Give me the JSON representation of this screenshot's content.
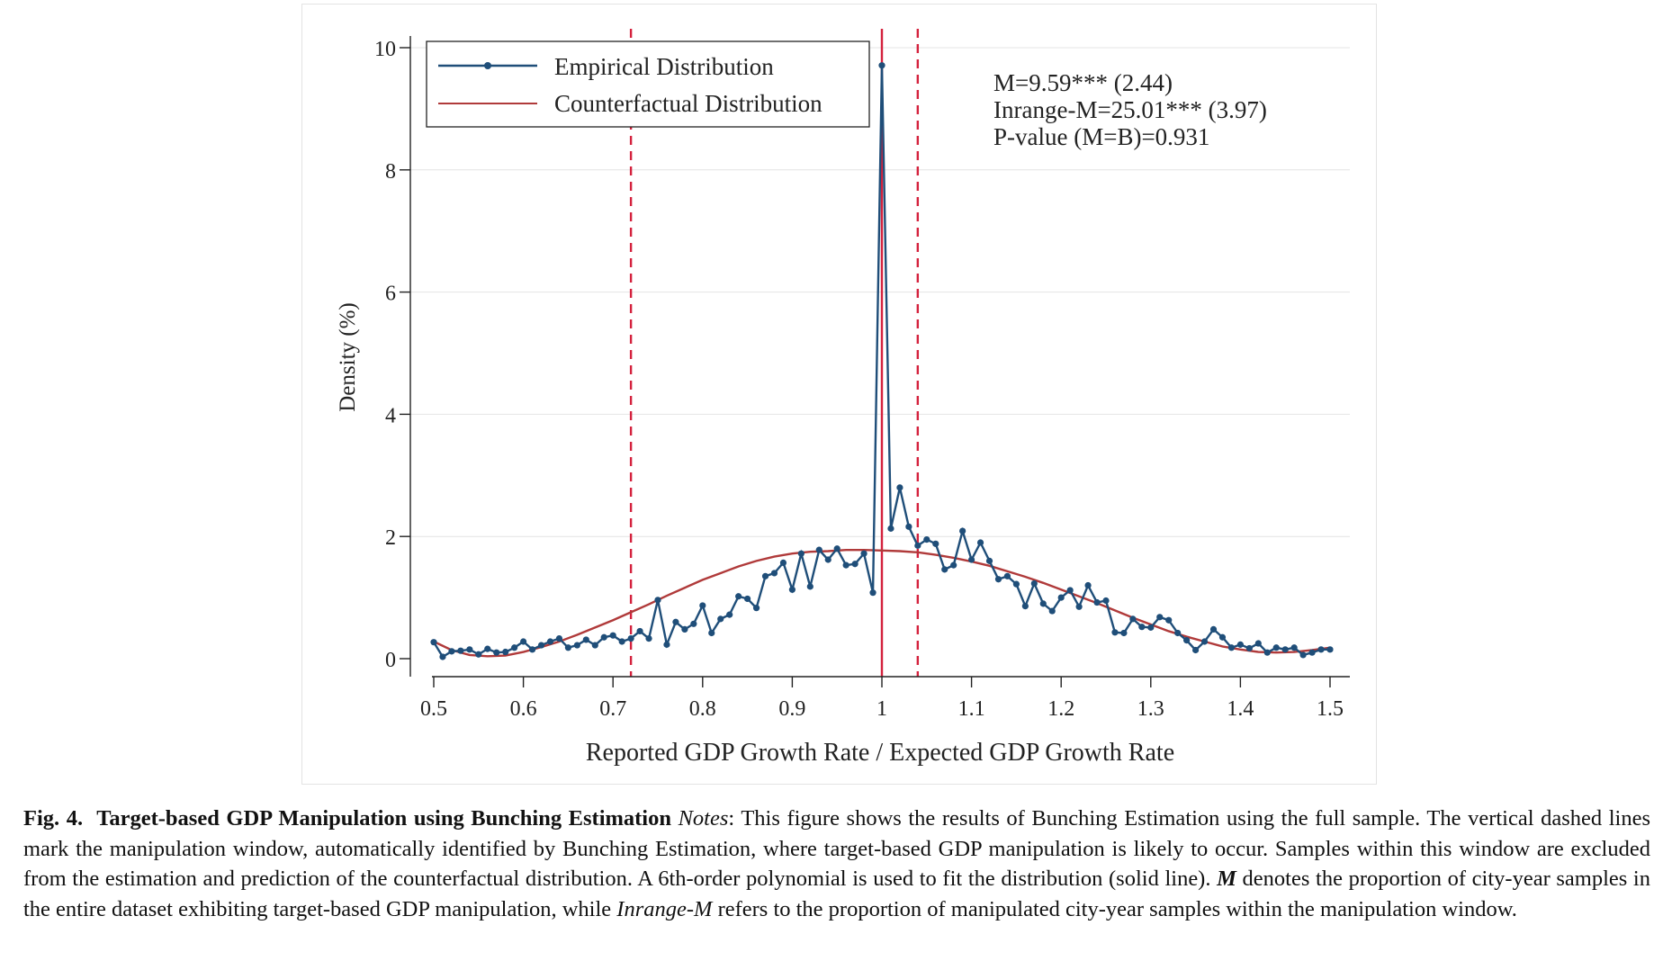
{
  "chart_data": {
    "type": "line",
    "xlabel": "Reported GDP Growth Rate / Expected GDP Growth Rate",
    "ylabel": "Density (%)",
    "xlim": [
      0.5,
      1.5
    ],
    "ylim": [
      0,
      10
    ],
    "x_ticks": [
      "0.5",
      "0.6",
      "0.7",
      "0.8",
      "0.9",
      "1",
      "1.1",
      "1.2",
      "1.3",
      "1.4",
      "1.5"
    ],
    "y_ticks": [
      "0",
      "2",
      "4",
      "6",
      "8",
      "10"
    ],
    "grid": "horizontal",
    "legend_position": "top-left",
    "series": [
      {
        "name": "Empirical Distribution",
        "color": "#1f4e79",
        "marker": "dot",
        "x": [
          0.5,
          0.51,
          0.52,
          0.53,
          0.54,
          0.55,
          0.56,
          0.57,
          0.58,
          0.59,
          0.6,
          0.61,
          0.62,
          0.63,
          0.64,
          0.65,
          0.66,
          0.67,
          0.68,
          0.69,
          0.7,
          0.71,
          0.72,
          0.73,
          0.74,
          0.75,
          0.76,
          0.77,
          0.78,
          0.79,
          0.8,
          0.81,
          0.82,
          0.83,
          0.84,
          0.85,
          0.86,
          0.87,
          0.88,
          0.89,
          0.9,
          0.91,
          0.92,
          0.93,
          0.94,
          0.95,
          0.96,
          0.97,
          0.98,
          0.99,
          1.0,
          1.01,
          1.02,
          1.03,
          1.04,
          1.05,
          1.06,
          1.07,
          1.08,
          1.09,
          1.1,
          1.11,
          1.12,
          1.13,
          1.14,
          1.15,
          1.16,
          1.17,
          1.18,
          1.19,
          1.2,
          1.21,
          1.22,
          1.23,
          1.24,
          1.25,
          1.26,
          1.27,
          1.28,
          1.29,
          1.3,
          1.31,
          1.32,
          1.33,
          1.34,
          1.35,
          1.36,
          1.37,
          1.38,
          1.39,
          1.4,
          1.41,
          1.42,
          1.43,
          1.44,
          1.45,
          1.46,
          1.47,
          1.48,
          1.49,
          1.5
        ],
        "y": [
          0.27,
          0.03,
          0.12,
          0.13,
          0.15,
          0.07,
          0.16,
          0.1,
          0.11,
          0.18,
          0.28,
          0.15,
          0.22,
          0.28,
          0.33,
          0.18,
          0.22,
          0.31,
          0.22,
          0.35,
          0.38,
          0.28,
          0.33,
          0.45,
          0.33,
          0.96,
          0.23,
          0.6,
          0.48,
          0.57,
          0.87,
          0.42,
          0.65,
          0.72,
          1.02,
          0.98,
          0.83,
          1.35,
          1.4,
          1.57,
          1.13,
          1.72,
          1.18,
          1.78,
          1.62,
          1.8,
          1.53,
          1.55,
          1.72,
          1.08,
          9.71,
          2.13,
          2.8,
          2.16,
          1.85,
          1.95,
          1.88,
          1.46,
          1.53,
          2.09,
          1.62,
          1.9,
          1.6,
          1.3,
          1.35,
          1.22,
          0.86,
          1.23,
          0.9,
          0.78,
          1.0,
          1.12,
          0.85,
          1.2,
          0.92,
          0.95,
          0.43,
          0.42,
          0.65,
          0.52,
          0.51,
          0.68,
          0.63,
          0.42,
          0.3,
          0.14,
          0.28,
          0.48,
          0.35,
          0.18,
          0.23,
          0.17,
          0.25,
          0.1,
          0.18,
          0.15,
          0.18,
          0.06,
          0.1,
          0.15,
          0.15
        ]
      },
      {
        "name": "Counterfactual Distribution",
        "color": "#b03a3a",
        "marker": "none",
        "x": [
          0.5,
          0.52,
          0.54,
          0.56,
          0.58,
          0.6,
          0.62,
          0.64,
          0.66,
          0.68,
          0.7,
          0.72,
          0.74,
          0.76,
          0.78,
          0.8,
          0.82,
          0.84,
          0.86,
          0.88,
          0.9,
          0.92,
          0.94,
          0.96,
          0.98,
          1.0,
          1.02,
          1.04,
          1.06,
          1.08,
          1.1,
          1.12,
          1.14,
          1.16,
          1.18,
          1.2,
          1.22,
          1.24,
          1.26,
          1.28,
          1.3,
          1.32,
          1.34,
          1.36,
          1.38,
          1.4,
          1.42,
          1.44,
          1.46,
          1.48,
          1.5
        ],
        "y": [
          0.28,
          0.14,
          0.06,
          0.04,
          0.05,
          0.11,
          0.19,
          0.28,
          0.39,
          0.51,
          0.63,
          0.76,
          0.89,
          1.03,
          1.16,
          1.29,
          1.4,
          1.51,
          1.6,
          1.67,
          1.72,
          1.75,
          1.76,
          1.78,
          1.78,
          1.77,
          1.76,
          1.74,
          1.7,
          1.65,
          1.59,
          1.52,
          1.43,
          1.34,
          1.24,
          1.13,
          1.02,
          0.91,
          0.79,
          0.67,
          0.56,
          0.45,
          0.36,
          0.28,
          0.2,
          0.15,
          0.11,
          0.1,
          0.11,
          0.14,
          0.18
        ]
      }
    ],
    "vlines": [
      {
        "x": 0.72,
        "style": "dashed",
        "color": "#d4213d"
      },
      {
        "x": 1.0,
        "style": "solid",
        "color": "#d4213d"
      },
      {
        "x": 1.04,
        "style": "dashed",
        "color": "#d4213d"
      }
    ],
    "annotations": [
      "M=9.59*** (2.44)",
      "Inrange-M=25.01*** (3.97)",
      "P-value (M=B)=0.931"
    ]
  },
  "caption": {
    "label": "Fig. 4.",
    "title": "Target-based GDP Manipulation using Bunching Estimation",
    "notes_label": "Notes",
    "text_1": ": This figure shows the results of Bunching Estimation using the full sample. The vertical dashed lines mark the manipulation window, automatically identified by Bunching Estimation, where target-based GDP manipulation is likely to occur. Samples within this window are excluded from the estimation and prediction of the counterfactual distribution. A 6th-order polynomial is used to fit the distribution (solid line). ",
    "m_symbol": "M",
    "text_2": " denotes the proportion of city-year samples in the entire dataset exhibiting target-based GDP manipulation, while ",
    "inrange_symbol": "Inrange-M",
    "text_3": " refers to the proportion of manipulated city-year samples within the manipulation window."
  }
}
